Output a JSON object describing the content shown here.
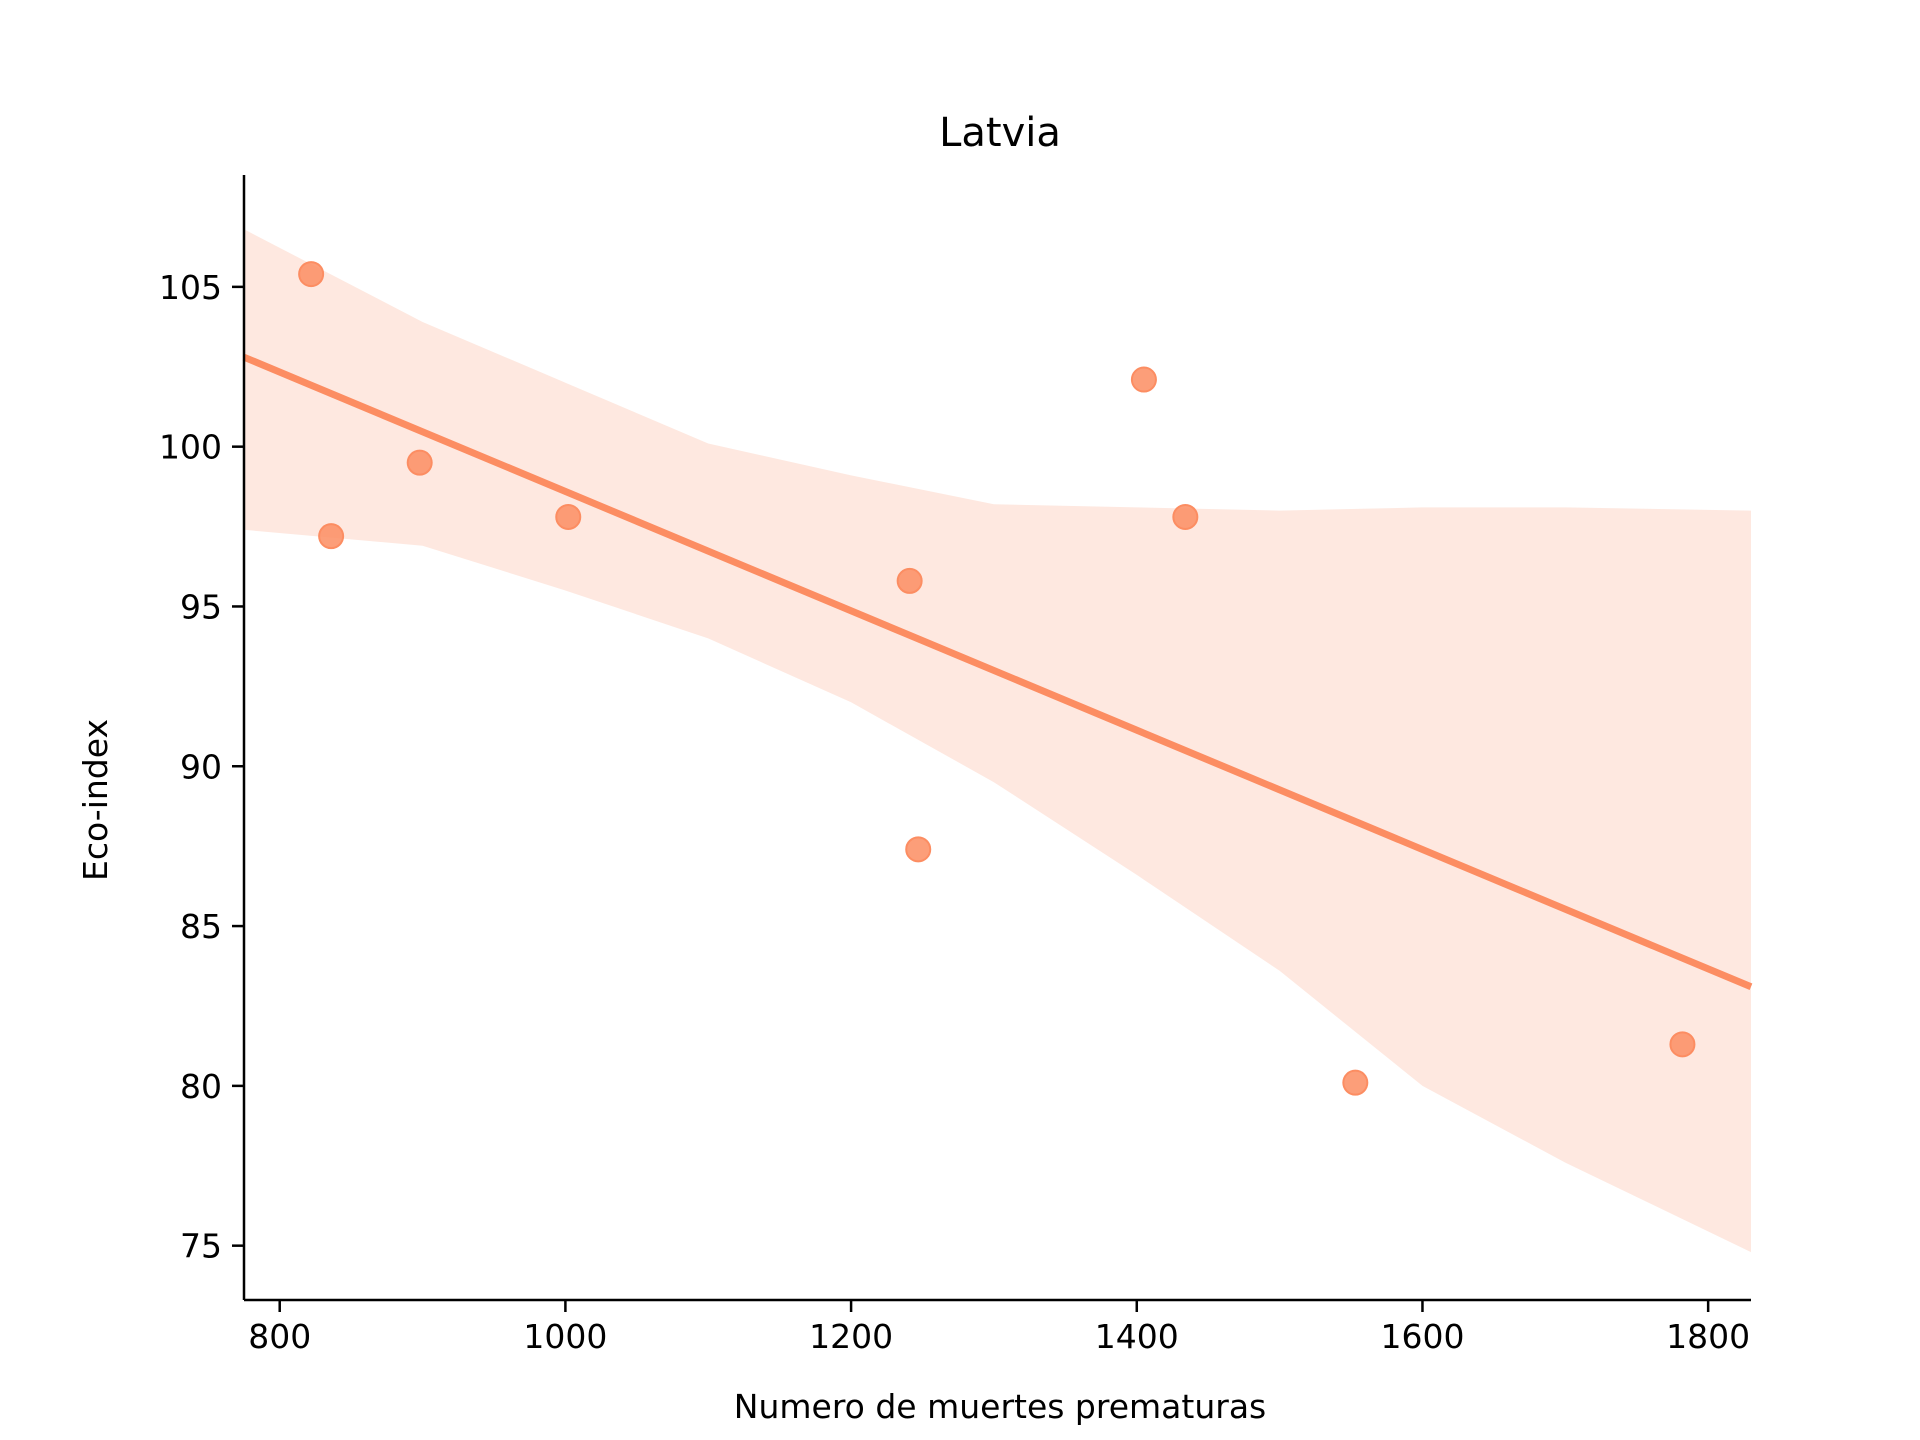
{
  "chart_data": {
    "type": "scatter",
    "title": "Latvia",
    "xlabel": "Numero de muertes prematuras",
    "ylabel": "Eco-index",
    "xlim": [
      775,
      1830
    ],
    "ylim": [
      73.3,
      108.5
    ],
    "x_ticks": [
      800,
      1000,
      1200,
      1400,
      1600,
      1800
    ],
    "y_ticks": [
      75,
      80,
      85,
      90,
      95,
      100,
      105
    ],
    "grid": false,
    "legend": "none",
    "colors": {
      "points": "#FC8D62",
      "line": "#FC8D62",
      "band": "#FC8D62",
      "axis": "#000000"
    },
    "series": [
      {
        "points": [
          {
            "x": 822,
            "y": 105.4
          },
          {
            "x": 836,
            "y": 97.2
          },
          {
            "x": 898,
            "y": 99.5
          },
          {
            "x": 1002,
            "y": 97.8
          },
          {
            "x": 1241,
            "y": 95.8
          },
          {
            "x": 1247,
            "y": 87.4
          },
          {
            "x": 1405,
            "y": 102.1
          },
          {
            "x": 1434,
            "y": 97.8
          },
          {
            "x": 1553,
            "y": 80.1
          },
          {
            "x": 1782,
            "y": 81.3
          }
        ]
      }
    ],
    "regression_line": {
      "x": [
        775,
        1830
      ],
      "y": [
        102.8,
        83.1
      ]
    },
    "confidence_band": {
      "x": [
        775,
        900,
        1000,
        1100,
        1200,
        1300,
        1400,
        1500,
        1600,
        1700,
        1830
      ],
      "upper": [
        106.8,
        103.9,
        102.0,
        100.1,
        99.1,
        98.2,
        98.1,
        98.0,
        98.1,
        98.1,
        98.0
      ],
      "lower": [
        97.4,
        96.9,
        95.5,
        94.0,
        92.0,
        89.5,
        86.6,
        83.6,
        80.0,
        77.6,
        74.8
      ]
    }
  }
}
